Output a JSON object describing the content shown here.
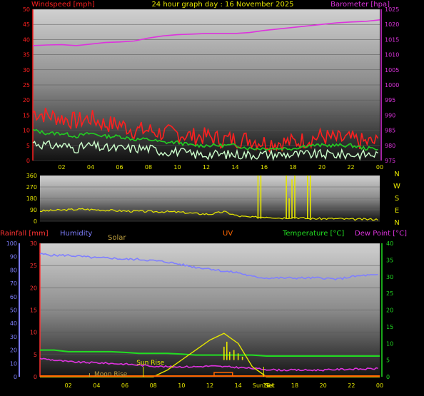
{
  "title": "24 hour graph day : 16 November 2025",
  "colors": {
    "windspeed": "#ff2020",
    "gust_green": "#22cc22",
    "wind_avg": "#ccffcc",
    "barometer": "#dd33dd",
    "direction": "#e6e600",
    "rain_axis": "#ff3333",
    "humidity": "#7f7fff",
    "solar": "#bfa040",
    "uv": "#ff6600",
    "temperature": "#22dd22",
    "dewpoint": "#dd33dd",
    "compass": "#e6e600"
  },
  "x_ticks": [
    "02",
    "04",
    "06",
    "08",
    "10",
    "12",
    "14",
    "16",
    "18",
    "20",
    "22",
    "00"
  ],
  "chart_data": [
    {
      "type": "line",
      "name": "wind-barometer",
      "labels": {
        "left": "Windspeed [mph]",
        "right": "Barometer [hpa]"
      },
      "left_axis": {
        "ticks": [
          0,
          5,
          10,
          15,
          20,
          25,
          30,
          35,
          40,
          45,
          50
        ],
        "range": [
          0,
          50
        ]
      },
      "right_axis": {
        "ticks": [
          975,
          980,
          985,
          990,
          995,
          1000,
          1005,
          1010,
          1015,
          1020,
          1025
        ],
        "range": [
          975,
          1025
        ]
      },
      "x": [
        0,
        1,
        2,
        3,
        4,
        5,
        6,
        7,
        8,
        9,
        10,
        11,
        12,
        13,
        14,
        15,
        16,
        17,
        18,
        19,
        20,
        21,
        22,
        23,
        24
      ],
      "series": [
        {
          "values": [
            16,
            15,
            14,
            13,
            14,
            12,
            12,
            10,
            10,
            9,
            9,
            8,
            8,
            7,
            7,
            7,
            6,
            6,
            6,
            7,
            8,
            7,
            7,
            6,
            6
          ]
        },
        {
          "values": [
            10,
            9,
            9,
            8,
            9,
            8,
            8,
            7,
            7,
            6,
            6,
            5,
            5,
            5,
            5,
            4,
            4,
            4,
            4,
            5,
            5,
            5,
            5,
            4,
            4
          ]
        },
        {
          "values": [
            6,
            5,
            5,
            4,
            5,
            4,
            4,
            4,
            4,
            3,
            3,
            2,
            2,
            2,
            2,
            2,
            2,
            2,
            2,
            2,
            2,
            2,
            2,
            2,
            2
          ]
        },
        {
          "values": [
            1013,
            1013.2,
            1013.3,
            1013,
            1013.5,
            1014,
            1014.2,
            1014.5,
            1015.5,
            1016.2,
            1016.6,
            1016.8,
            1017,
            1017,
            1017,
            1017.3,
            1018,
            1018.5,
            1019,
            1019.5,
            1020,
            1020.5,
            1020.8,
            1021,
            1021.5
          ]
        }
      ]
    },
    {
      "type": "scatter",
      "name": "wind-direction",
      "left_axis": {
        "ticks": [
          0,
          90,
          180,
          270,
          360
        ],
        "range": [
          0,
          360
        ]
      },
      "compass": [
        "N",
        "W",
        "S",
        "E",
        "N"
      ],
      "x": [
        0,
        1,
        2,
        3,
        4,
        5,
        6,
        7,
        8,
        9,
        10,
        11,
        12,
        13,
        14,
        15,
        16,
        17,
        18,
        19,
        20,
        21,
        22,
        23,
        24
      ],
      "values": [
        80,
        85,
        90,
        95,
        90,
        85,
        80,
        78,
        75,
        75,
        70,
        60,
        55,
        75,
        40,
        30,
        35,
        25,
        30,
        20,
        20,
        20,
        15,
        15,
        15
      ],
      "spikes": [
        {
          "x": 15.4,
          "top": 360
        },
        {
          "x": 15.6,
          "top": 360
        },
        {
          "x": 17.4,
          "top": 360
        },
        {
          "x": 17.8,
          "top": 330
        },
        {
          "x": 18.0,
          "top": 360
        },
        {
          "x": 18.9,
          "top": 360
        },
        {
          "x": 19.1,
          "top": 360
        },
        {
          "x": 17.6,
          "top": 180
        }
      ]
    },
    {
      "type": "line",
      "name": "rain-temperature",
      "labels": {
        "rainfall": "Rainfall [mm]",
        "humidity": "Humidity",
        "solar": "Solar",
        "uv": "UV",
        "temperature": "Temperature [°C]",
        "dewpoint": "Dew Point [°C]"
      },
      "humidity_axis": {
        "ticks": [
          0,
          10,
          20,
          30,
          40,
          50,
          60,
          70,
          80,
          90,
          100
        ],
        "range": [
          0,
          100
        ]
      },
      "rain_axis": {
        "ticks": [
          0,
          5,
          10,
          15,
          20,
          25,
          30
        ],
        "range": [
          0,
          30
        ]
      },
      "temp_axis": {
        "ticks": [
          0,
          5,
          10,
          15,
          20,
          25,
          30,
          35,
          40
        ],
        "range": [
          0,
          40
        ]
      },
      "x": [
        0,
        1,
        2,
        3,
        4,
        5,
        6,
        7,
        8,
        9,
        10,
        11,
        12,
        13,
        14,
        15,
        16,
        17,
        18,
        19,
        20,
        21,
        22,
        23,
        24
      ],
      "series": [
        {
          "values": [
            92,
            91,
            91,
            90,
            89,
            89,
            88,
            88,
            87,
            86,
            84,
            82,
            81,
            79,
            78,
            75,
            74,
            74,
            74,
            74,
            74,
            73,
            75,
            76,
            76
          ]
        },
        {
          "values": [
            8,
            8,
            7.5,
            7.5,
            7.5,
            7.5,
            7.3,
            7,
            7,
            7,
            6.8,
            6.5,
            6.5,
            6.5,
            6.5,
            6.5,
            6.2,
            6.2,
            6.2,
            6.2,
            6.2,
            6.2,
            6.2,
            6.2,
            6.2
          ]
        },
        {
          "values": [
            5.5,
            5,
            4.5,
            4.3,
            4.2,
            4,
            3.8,
            3.5,
            3.2,
            3,
            3,
            3,
            3.2,
            3,
            2.8,
            2.5,
            2.2,
            2,
            2,
            2,
            2,
            2.2,
            2.3,
            2.3,
            2.5
          ]
        },
        {
          "values": [
            0,
            0,
            0,
            0,
            0,
            0,
            0,
            0,
            0,
            2,
            5,
            8,
            11,
            13,
            10,
            3,
            0,
            0,
            0,
            0,
            0,
            0,
            0,
            0,
            0
          ]
        }
      ],
      "solar_spikes": [
        {
          "x": 13.0,
          "v": 9
        },
        {
          "x": 13.2,
          "v": 10.5
        },
        {
          "x": 13.4,
          "v": 7.5
        },
        {
          "x": 13.7,
          "v": 8
        },
        {
          "x": 14.0,
          "v": 7
        },
        {
          "x": 14.3,
          "v": 6
        }
      ],
      "annotations": [
        "Sun Rise",
        "Moon Rise",
        "Sun Set",
        "Set"
      ]
    }
  ]
}
